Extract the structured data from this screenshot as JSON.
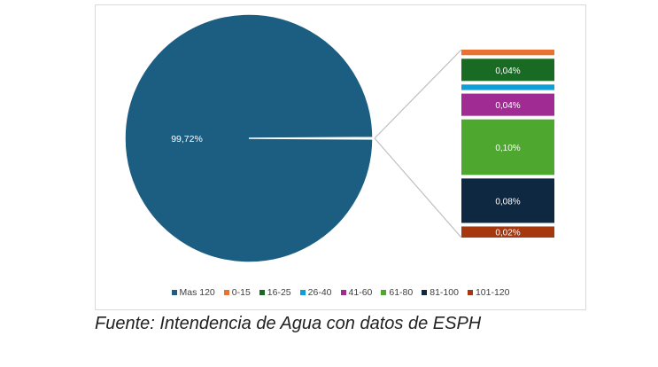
{
  "chart_data": {
    "type": "pie",
    "subtype": "bar-of-pie",
    "title": "",
    "categories": [
      "Mas 120",
      "0-15",
      "16-25",
      "26-40",
      "41-60",
      "61-80",
      "81-100",
      "101-120"
    ],
    "values": [
      99.72,
      0.01,
      0.04,
      0.01,
      0.04,
      0.1,
      0.08,
      0.02
    ],
    "labels": [
      "99,72%",
      "",
      "0,04%",
      "",
      "0,04%",
      "0,10%",
      "0,08%",
      "0,02%"
    ],
    "colors": [
      "#1b5e82",
      "#e97132",
      "#196b24",
      "#0f9ed5",
      "#a02b93",
      "#4ea72e",
      "#0e2841",
      "#a5380f"
    ],
    "legend_position": "bottom",
    "stack_order_top_to_bottom": [
      1,
      2,
      3,
      4,
      5,
      6,
      7
    ]
  },
  "caption": "Fuente: Intendencia de Agua con datos de ESPH"
}
